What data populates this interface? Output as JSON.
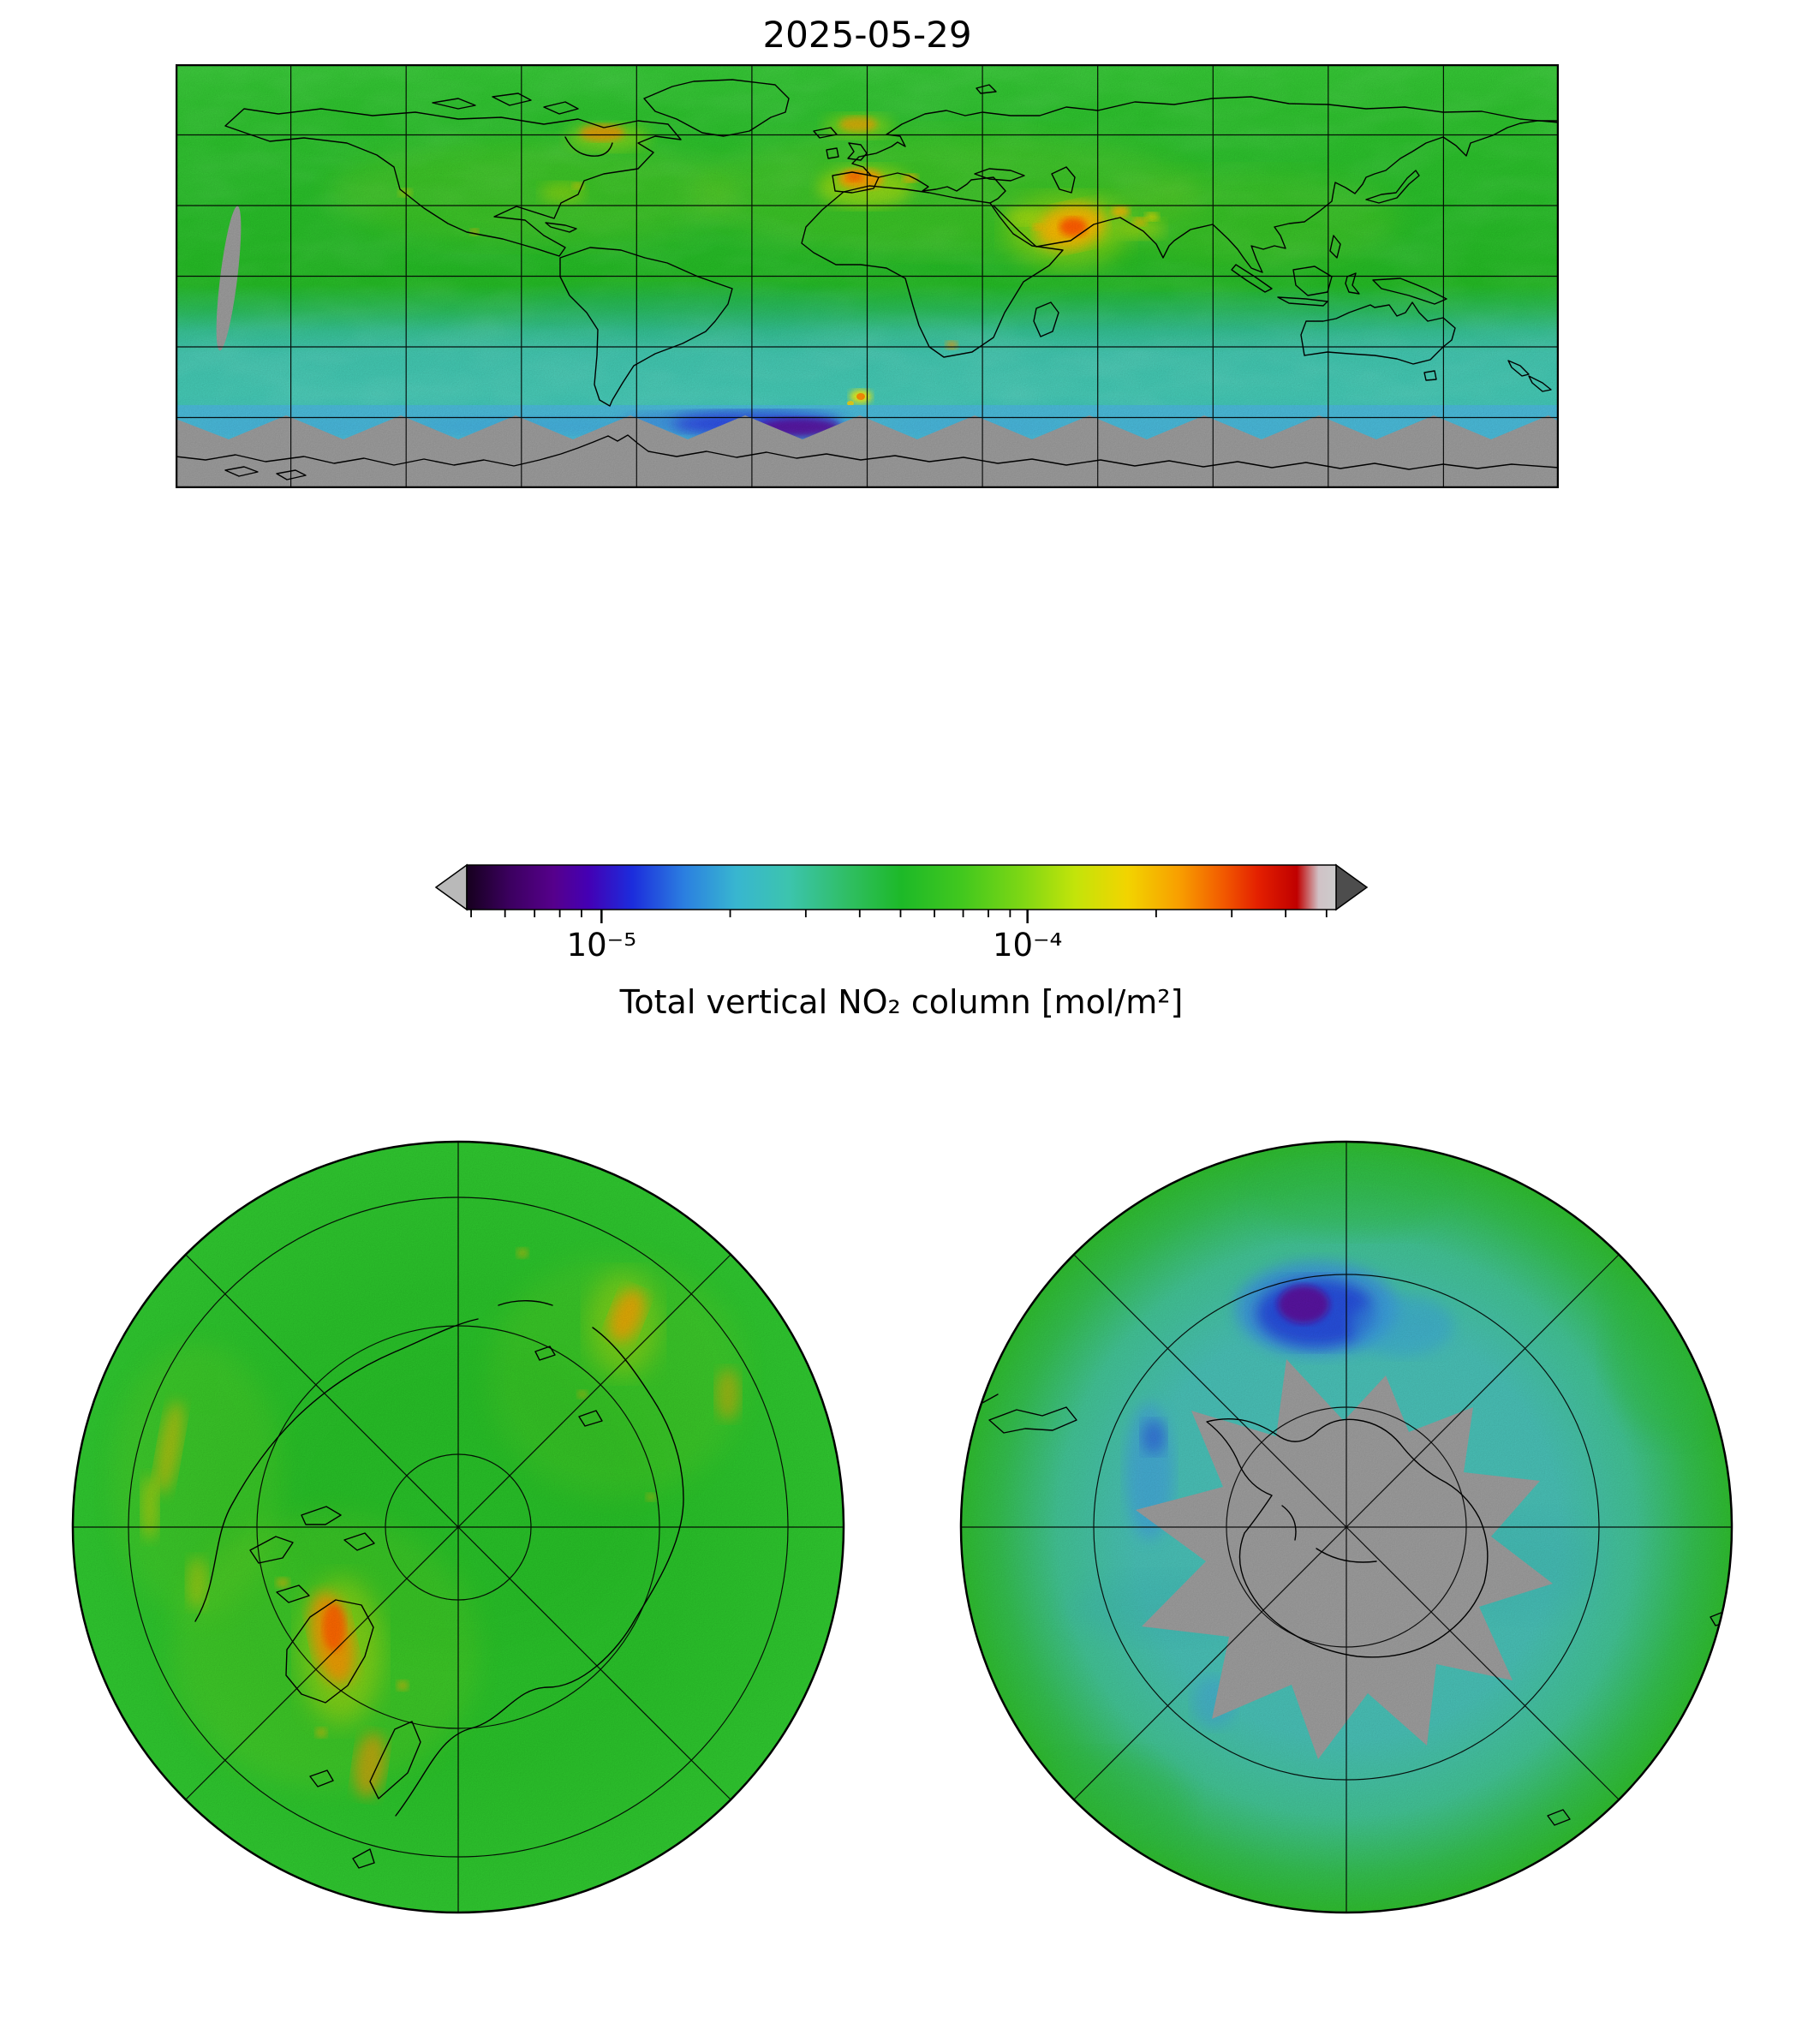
{
  "figure": {
    "title": "2025-05-29"
  },
  "colorbar": {
    "label": "Total vertical NO₂ column [mol/m²]",
    "orientation": "horizontal",
    "scale": "log",
    "extend": "both",
    "major_ticks": [
      {
        "pos": 0.155,
        "label": "10⁻⁵"
      },
      {
        "pos": 0.645,
        "label": "10⁻⁴"
      }
    ],
    "minor_tick_positions": [
      0.005,
      0.044,
      0.078,
      0.107,
      0.132,
      0.303,
      0.39,
      0.452,
      0.499,
      0.538,
      0.571,
      0.6,
      0.625,
      0.793,
      0.88,
      0.942,
      0.989
    ],
    "gradient_stops": [
      [
        0.0,
        "#16001e"
      ],
      [
        0.05,
        "#3c0060"
      ],
      [
        0.1,
        "#56008c"
      ],
      [
        0.14,
        "#4400b4"
      ],
      [
        0.19,
        "#1c2cdc"
      ],
      [
        0.25,
        "#2b7fe0"
      ],
      [
        0.31,
        "#38b6d0"
      ],
      [
        0.37,
        "#3cc4ae"
      ],
      [
        0.44,
        "#2fbe62"
      ],
      [
        0.5,
        "#1db928"
      ],
      [
        0.57,
        "#42c81e"
      ],
      [
        0.64,
        "#7fd714"
      ],
      [
        0.7,
        "#c3e40a"
      ],
      [
        0.76,
        "#f2d400"
      ],
      [
        0.82,
        "#f89e00"
      ],
      [
        0.87,
        "#f25a00"
      ],
      [
        0.91,
        "#e42000"
      ],
      [
        0.955,
        "#c00000"
      ],
      [
        0.98,
        "#d0c2c6"
      ],
      [
        1.0,
        "#cccccc"
      ]
    ],
    "under_arrow_color": "#b9b9b9",
    "over_arrow_color": "#4d4d4d"
  },
  "palette": {
    "base_green": "#28bc28",
    "southern_band_cyan": "#42c3b0",
    "terminator_strip_blue": "#49b8d6",
    "deep_blue": "#2334d8",
    "polar_night_purple": "#5c0a96",
    "hotspot_yellow": "#d8e000",
    "hotspot_orange": "#ff9900",
    "hotspot_red": "#ff5500",
    "nodata_gray": "#9a9a9a",
    "coastline_black": "#000000",
    "background_white": "#ffffff"
  },
  "chart_data": {
    "type": "heatmap",
    "title": "2025-05-29",
    "colorbar": {
      "label": "Total vertical NO₂ column [mol/m²]",
      "scale": "log",
      "tick_values": [
        1e-05,
        0.0001
      ],
      "estimated_range": [
        5e-06,
        0.0005
      ],
      "extend": "both",
      "colormap": "black-purple-blue-cyan-green-yellow-orange-red-lightgray (nipy_spectral-like)"
    },
    "panels": [
      {
        "name": "global",
        "projection": "equirectangular",
        "gridline_spacing_deg": 30,
        "features": [
          "uniform green background ≈3e-5 to 5e-5 mol/m² over most land and northern oceans",
          "cyan band ≈2e-5 mol/m² over southern mid-latitude oceans",
          "elevated plumes ≈1e-4 to 2e-4 mol/m² (yellow-orange) over eastern China, Korea/Japan, northwest Europe, Po Valley, India, Middle East, eastern North America and central-African biomass burning",
          "low values ≈5e-6 to 1e-5 mol/m² (blue-purple) along the Antarctic polar-night terminator",
          "gray no-data region over Antarctica with sawtooth orbit-swath edges plus one narrow no-data orbit sliver in the eastern Pacific"
        ]
      },
      {
        "name": "north-polar",
        "projection": "polar stereographic (north)",
        "features": [
          "mostly green ≈4e-5 mol/m²",
          "orange-yellow plumes in the Europe and east-Asia sectors",
          "scattered yellow streaks in the North-America sector (fire plumes)"
        ]
      },
      {
        "name": "south-polar",
        "projection": "polar stereographic (south)",
        "features": [
          "cyan ≈2e-5 mol/m² ocean ring around Antarctica, greener toward the 30°S rim",
          "gray jagged no-data disc over Antarctica (polar night)",
          "blue-purple minimum ≈5e-6 mol/m² at the polar-night edge near the top of the disc"
        ]
      }
    ]
  }
}
